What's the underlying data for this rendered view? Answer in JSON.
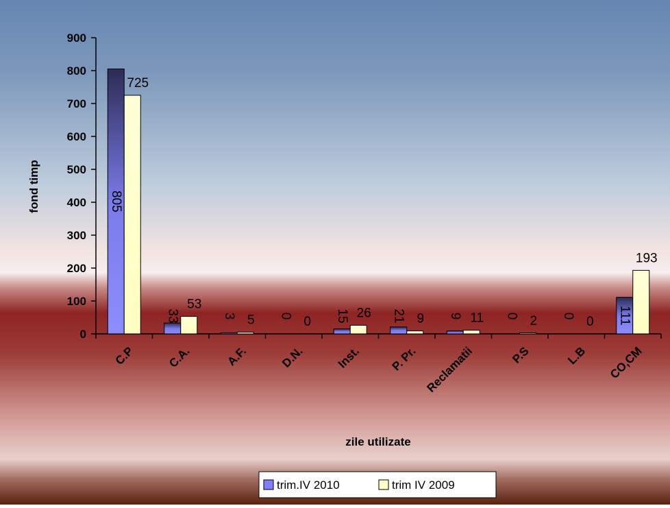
{
  "chart_data": {
    "type": "bar",
    "title": "",
    "xlabel": "zile utilizate",
    "ylabel": "fond timp",
    "ylim": [
      0,
      900
    ],
    "yticks": [
      0,
      100,
      200,
      300,
      400,
      500,
      600,
      700,
      800,
      900
    ],
    "grid": false,
    "legend_position": "bottom",
    "categories": [
      "C.P",
      "C.A.",
      "A.F.",
      "D.N.",
      "Inst.",
      "P. Pr.",
      "Reclamatii",
      "P.S",
      "L.B",
      "CO,CM"
    ],
    "series": [
      {
        "name": "trim.IV 2010",
        "values": [
          805,
          33,
          3,
          0,
          15,
          21,
          9,
          0,
          0,
          111
        ],
        "color": "#8080ff",
        "labels": [
          "805",
          "33",
          "3",
          "0",
          "15",
          "21",
          "9",
          "0",
          "0",
          "111"
        ]
      },
      {
        "name": "trim IV 2009",
        "values": [
          725,
          53,
          5,
          0,
          26,
          9,
          11,
          2,
          0,
          193
        ],
        "color": "#ffffcc",
        "labels": [
          "725",
          "53",
          "5",
          "0",
          "26",
          "9",
          "11",
          "2",
          "0",
          "193"
        ]
      }
    ]
  },
  "colors": {
    "bg_top": "#5d7fa8",
    "bg_mid": "#f3e3e0",
    "bg_band": "#8c1f1f",
    "bg_bottom": "#5a2010"
  }
}
